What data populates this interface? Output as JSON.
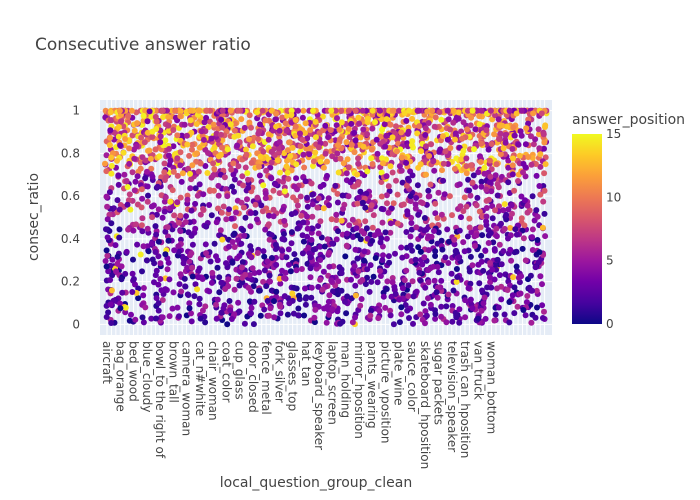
{
  "chart_data": {
    "type": "scatter",
    "title": "Consecutive answer ratio",
    "xlabel": "local_question_group_clean",
    "ylabel": "consec_ratio",
    "ylim": [
      -0.05,
      1.05
    ],
    "y_ticks": [
      0,
      0.2,
      0.4,
      0.6,
      0.8,
      1
    ],
    "y_tick_labels": [
      "0",
      "0.2",
      "0.4",
      "0.6",
      "0.8",
      "1"
    ],
    "categories": [
      "aircraft",
      "bag_orange",
      "bed_wood",
      "blue_cloudy",
      "bowl_to the right of",
      "brown_tall",
      "camera_woman",
      "cat_n#white",
      "chair_woman",
      "coat_color",
      "cup_glass",
      "door_closed",
      "fence_metal",
      "fork_silver",
      "glasses_top",
      "hat_tan",
      "keyboard_speaker",
      "laptop_screen",
      "man_holding",
      "mirror_hposition",
      "pants_wearing",
      "picture_vposition",
      "plate_wine",
      "sauce_color",
      "skateboard_hposition",
      "sugar packets",
      "television_speaker",
      "trash can_hposition",
      "van_truck",
      "woman_bottom"
    ],
    "point_count": 3200,
    "color_variable": "answer_position",
    "colorbar": {
      "title": "answer_position",
      "min": 0,
      "max": 15,
      "ticks": [
        0,
        5,
        10,
        15
      ],
      "tick_labels": [
        "0",
        "5",
        "10",
        "15"
      ]
    },
    "colorscale": [
      "#0d0887",
      "#46039f",
      "#7201a8",
      "#9c179e",
      "#bd3786",
      "#d8576b",
      "#ed7953",
      "#fb9f3a",
      "#fdca26",
      "#f0f921"
    ],
    "grid": true,
    "legend": "colorbar-right"
  }
}
